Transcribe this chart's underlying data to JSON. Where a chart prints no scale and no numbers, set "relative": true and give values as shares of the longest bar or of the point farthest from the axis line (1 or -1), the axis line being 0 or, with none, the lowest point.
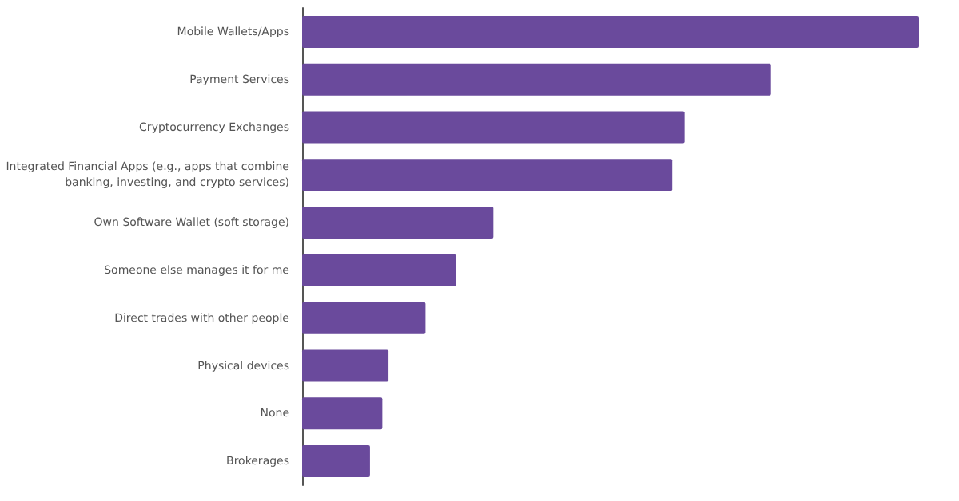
{
  "chart_data": {
    "type": "bar",
    "orientation": "horizontal",
    "relative": true,
    "categories": [
      "Mobile Wallets/Apps",
      "Payment Services",
      "Cryptocurrency Exchanges",
      "Integrated Financial Apps (e.g., apps that combine banking, investing, and crypto services)",
      "Own Software Wallet (soft storage)",
      "Someone else manages it for me",
      "Direct trades with other people",
      "Physical devices",
      "None",
      "Brokerages"
    ],
    "values": [
      1,
      0.76,
      0.62,
      0.6,
      0.31,
      0.25,
      0.2,
      0.14,
      0.13,
      0.11
    ],
    "color": "#6a4a9c"
  }
}
